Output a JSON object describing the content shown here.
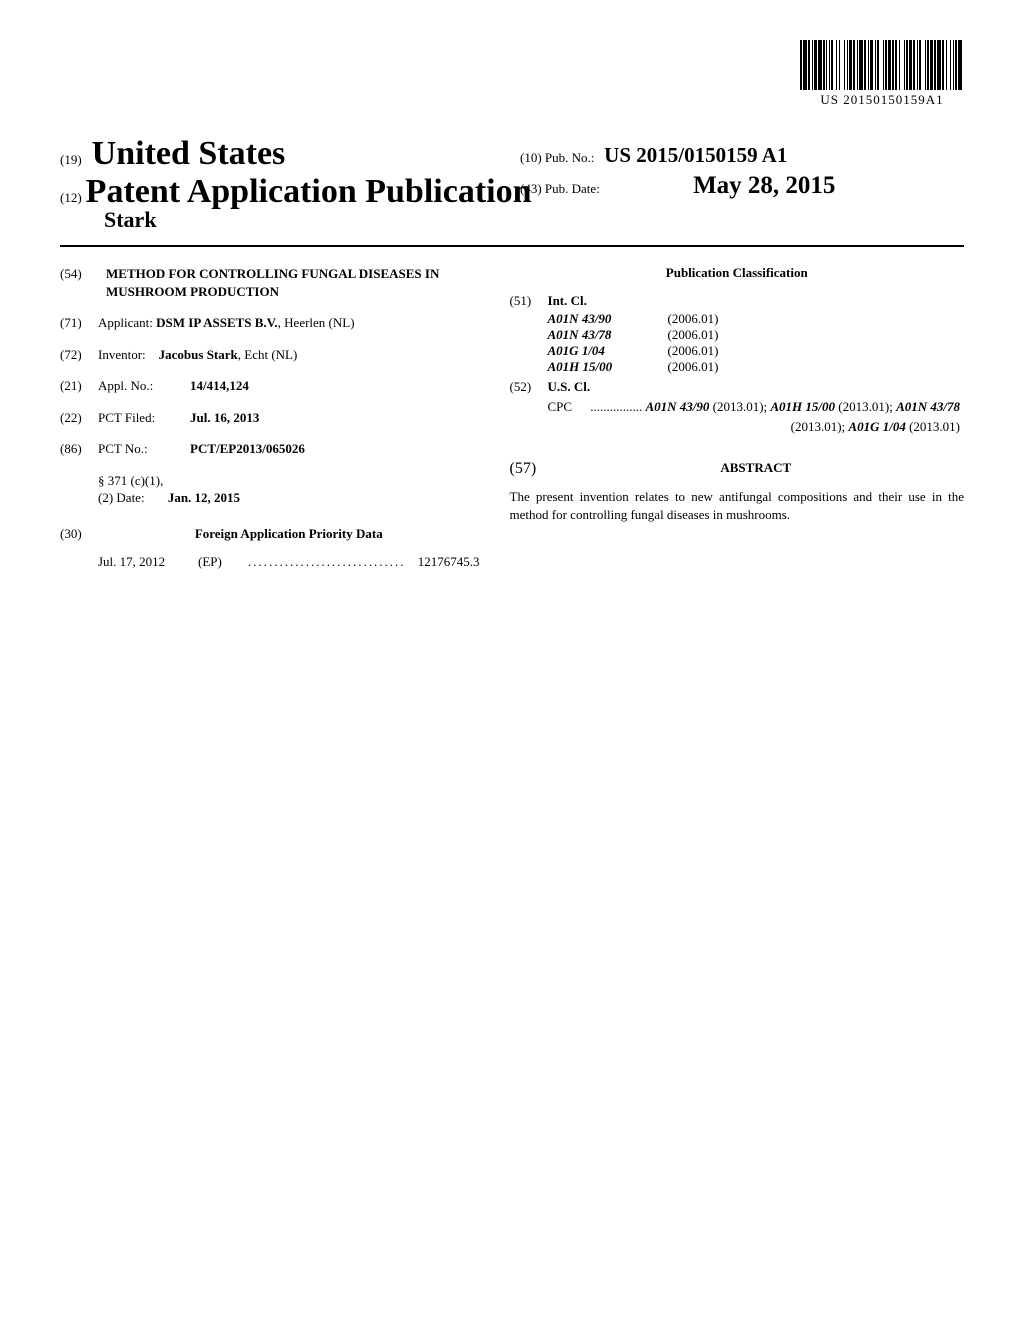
{
  "barcode_number": "US 20150150159A1",
  "header": {
    "country_num": "(19)",
    "country_name": "United States",
    "pub_num": "(12)",
    "pub_title": "Patent Application Publication",
    "author": "Stark",
    "pub_no_num": "(10)",
    "pub_no_label": "Pub. No.:",
    "pub_no_value": "US 2015/0150159 A1",
    "pub_date_num": "(43)",
    "pub_date_label": "Pub. Date:",
    "pub_date_value": "May 28, 2015"
  },
  "fields": {
    "title_num": "(54)",
    "title": "METHOD FOR CONTROLLING FUNGAL DISEASES IN MUSHROOM PRODUCTION",
    "applicant_num": "(71)",
    "applicant_label": "Applicant:",
    "applicant_name": "DSM IP ASSETS B.V.",
    "applicant_loc": ", Heerlen (NL)",
    "inventor_num": "(72)",
    "inventor_label": "Inventor:",
    "inventor_name": "Jacobus Stark",
    "inventor_loc": ", Echt (NL)",
    "appl_no_num": "(21)",
    "appl_no_label": "Appl. No.:",
    "appl_no_value": "14/414,124",
    "pct_filed_num": "(22)",
    "pct_filed_label": "PCT Filed:",
    "pct_filed_value": "Jul. 16, 2013",
    "pct_no_num": "(86)",
    "pct_no_label": "PCT No.:",
    "pct_no_value": "PCT/EP2013/065026",
    "sect_371_label": "§ 371 (c)(1),",
    "sect_371_date_label": "(2) Date:",
    "sect_371_date_value": "Jan. 12, 2015",
    "foreign_num": "(30)",
    "foreign_header": "Foreign Application Priority Data",
    "foreign_date": "Jul. 17, 2012",
    "foreign_country": "(EP)",
    "foreign_app_no": "12176745.3"
  },
  "classification": {
    "header": "Publication Classification",
    "int_cl_num": "(51)",
    "int_cl_label": "Int. Cl.",
    "int_classes": [
      {
        "code": "A01N 43/90",
        "year": "(2006.01)"
      },
      {
        "code": "A01N 43/78",
        "year": "(2006.01)"
      },
      {
        "code": "A01G 1/04",
        "year": "(2006.01)"
      },
      {
        "code": "A01H 15/00",
        "year": "(2006.01)"
      }
    ],
    "us_cl_num": "(52)",
    "us_cl_label": "U.S. Cl.",
    "cpc_label": "CPC",
    "cpc_items": [
      {
        "code": "A01N 43/90",
        "year": "(2013.01)"
      },
      {
        "code": "A01H 15/00",
        "year": "(2013.01)"
      },
      {
        "code": "A01N 43/78",
        "year": "(2013.01)"
      },
      {
        "code": "A01G 1/04",
        "year": "(2013.01)"
      }
    ]
  },
  "abstract": {
    "num": "(57)",
    "header": "ABSTRACT",
    "text": "The present invention relates to new antifungal compositions and their use in the method for controlling fungal diseases in mushrooms."
  },
  "barcode_pattern": [
    2,
    1,
    4,
    1,
    2,
    2,
    1,
    1,
    3,
    1,
    4,
    1,
    2,
    1,
    1,
    2,
    1,
    1,
    2,
    3,
    1,
    2,
    1,
    4,
    1,
    2,
    1,
    1,
    3,
    1,
    2,
    2,
    1,
    1,
    4,
    1,
    2,
    2,
    1,
    1,
    3,
    2,
    1,
    1,
    2,
    4,
    1,
    1,
    2,
    1,
    3,
    1,
    2,
    1,
    2,
    2,
    1,
    4,
    1,
    1,
    2,
    1,
    3,
    1,
    2,
    2,
    1,
    1,
    2,
    4,
    1,
    1,
    2,
    1,
    3,
    1,
    2,
    1,
    4,
    1,
    2,
    2,
    1,
    3,
    1,
    2,
    1,
    1,
    2,
    1,
    4,
    2
  ]
}
